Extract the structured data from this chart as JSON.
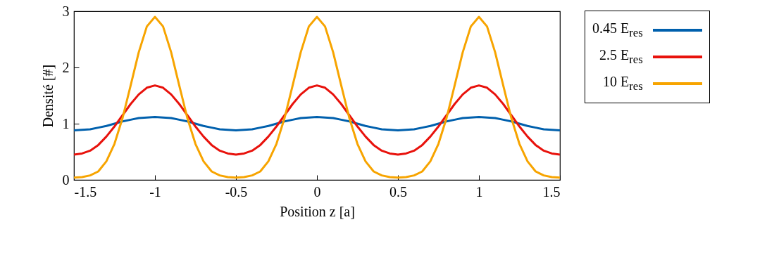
{
  "chart_data": {
    "type": "line",
    "xlabel": "Position z [a]",
    "ylabel": "Densité [#]",
    "x": [
      -1.5,
      -1.45,
      -1.4,
      -1.35,
      -1.3,
      -1.25,
      -1.2,
      -1.15,
      -1.1,
      -1.05,
      -1.0,
      -0.95,
      -0.9,
      -0.85,
      -0.8,
      -0.75,
      -0.7,
      -0.65,
      -0.6,
      -0.55,
      -0.5,
      -0.45,
      -0.4,
      -0.35,
      -0.3,
      -0.25,
      -0.2,
      -0.15,
      -0.1,
      -0.05,
      0,
      0.05,
      0.1,
      0.15,
      0.2,
      0.25,
      0.3,
      0.35,
      0.4,
      0.45,
      0.5,
      0.55,
      0.6,
      0.65,
      0.7,
      0.75,
      0.8,
      0.85,
      0.9,
      0.95,
      1.0,
      1.05,
      1.1,
      1.15,
      1.2,
      1.25,
      1.3,
      1.35,
      1.4,
      1.45,
      1.5
    ],
    "series": [
      {
        "name": "0.45 E$_{res}$",
        "color": "#0060ad",
        "values": [
          0.88,
          0.89,
          0.9,
          0.93,
          0.96,
          1.0,
          1.04,
          1.07,
          1.1,
          1.11,
          1.12,
          1.11,
          1.1,
          1.07,
          1.04,
          1.0,
          0.96,
          0.93,
          0.9,
          0.89,
          0.88,
          0.89,
          0.9,
          0.93,
          0.96,
          1.0,
          1.04,
          1.07,
          1.1,
          1.11,
          1.12,
          1.11,
          1.1,
          1.07,
          1.04,
          1.0,
          0.96,
          0.93,
          0.9,
          0.89,
          0.88,
          0.89,
          0.9,
          0.93,
          0.96,
          1.0,
          1.04,
          1.07,
          1.1,
          1.11,
          1.12,
          1.11,
          1.1,
          1.07,
          1.04,
          1.0,
          0.96,
          0.93,
          0.9,
          0.89,
          0.88
        ]
      },
      {
        "name": "2.5 E$_{res}$",
        "color": "#e8120c",
        "values": [
          0.45,
          0.47,
          0.52,
          0.62,
          0.77,
          0.95,
          1.15,
          1.35,
          1.52,
          1.64,
          1.68,
          1.64,
          1.52,
          1.35,
          1.15,
          0.95,
          0.77,
          0.62,
          0.52,
          0.47,
          0.45,
          0.47,
          0.52,
          0.62,
          0.77,
          0.95,
          1.15,
          1.35,
          1.52,
          1.64,
          1.68,
          1.64,
          1.52,
          1.35,
          1.15,
          0.95,
          0.77,
          0.62,
          0.52,
          0.47,
          0.45,
          0.47,
          0.52,
          0.62,
          0.77,
          0.95,
          1.15,
          1.35,
          1.52,
          1.64,
          1.68,
          1.64,
          1.52,
          1.35,
          1.15,
          0.95,
          0.77,
          0.62,
          0.52,
          0.47,
          0.45
        ]
      },
      {
        "name": "10 E$_{res}$",
        "color": "#f7a400",
        "values": [
          0.04,
          0.05,
          0.08,
          0.15,
          0.33,
          0.64,
          1.1,
          1.68,
          2.27,
          2.73,
          2.9,
          2.73,
          2.27,
          1.68,
          1.1,
          0.64,
          0.33,
          0.15,
          0.08,
          0.05,
          0.04,
          0.05,
          0.08,
          0.15,
          0.33,
          0.64,
          1.1,
          1.68,
          2.27,
          2.73,
          2.9,
          2.73,
          2.27,
          1.68,
          1.1,
          0.64,
          0.33,
          0.15,
          0.08,
          0.05,
          0.04,
          0.05,
          0.08,
          0.15,
          0.33,
          0.64,
          1.1,
          1.68,
          2.27,
          2.73,
          2.9,
          2.73,
          2.27,
          1.68,
          1.1,
          0.64,
          0.33,
          0.15,
          0.08,
          0.05,
          0.04
        ]
      }
    ],
    "xlim": [
      -1.5,
      1.5
    ],
    "xticks": [
      -1.5,
      -1,
      -0.5,
      0,
      0.5,
      1,
      1.5
    ],
    "ylim": [
      0,
      3
    ],
    "yticks": [
      0,
      1,
      2,
      3
    ],
    "grid": false,
    "legend": "top right",
    "line_style": "solid",
    "marker": "none"
  }
}
